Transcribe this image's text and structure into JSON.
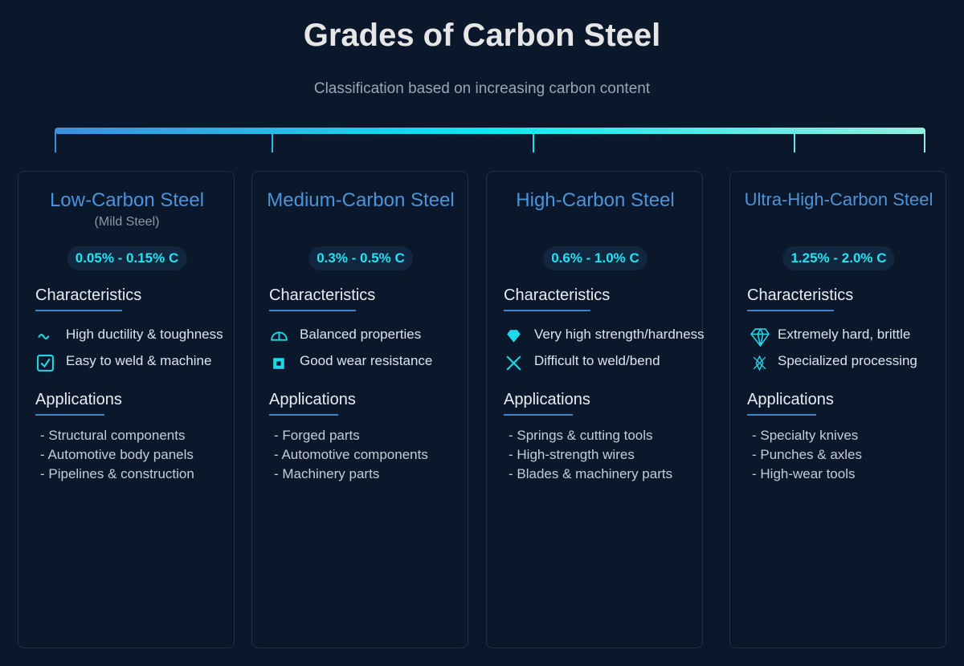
{
  "header": {
    "title": "Grades of Carbon Steel",
    "subtitle": "Classification based on increasing carbon content"
  },
  "cards": [
    {
      "title": "Low-Carbon Steel",
      "subtitle": "(Mild Steel)",
      "range": "0.05% - 0.15% C",
      "characteristics_heading": "Characteristics",
      "characteristics": [
        "High ductility & toughness",
        "Easy to weld & machine"
      ],
      "applications_heading": "Applications",
      "applications": [
        "- Structural components",
        "- Automotive body panels",
        "- Pipelines & construction"
      ]
    },
    {
      "title": "Medium-Carbon Steel",
      "range": "0.3% - 0.5% C",
      "characteristics_heading": "Characteristics",
      "characteristics": [
        "Balanced properties",
        "Good wear resistance"
      ],
      "applications_heading": "Applications",
      "applications": [
        "- Forged parts",
        "- Automotive components",
        "- Machinery parts"
      ]
    },
    {
      "title": "High-Carbon Steel",
      "range": "0.6% - 1.0% C",
      "characteristics_heading": "Characteristics",
      "characteristics": [
        "Very high strength/hardness",
        "Difficult to weld/bend"
      ],
      "applications_heading": "Applications",
      "applications": [
        "- Springs & cutting tools",
        "- High-strength wires",
        "- Blades & machinery parts"
      ]
    },
    {
      "title": "Ultra-High-Carbon Steel",
      "range": "1.25% - 2.0% C",
      "characteristics_heading": "Characteristics",
      "characteristics": [
        "Extremely hard, brittle",
        "Specialized processing"
      ],
      "applications_heading": "Applications",
      "applications": [
        "- Specialty knives",
        "- Punches & axles",
        "- High-wear tools"
      ]
    }
  ]
}
